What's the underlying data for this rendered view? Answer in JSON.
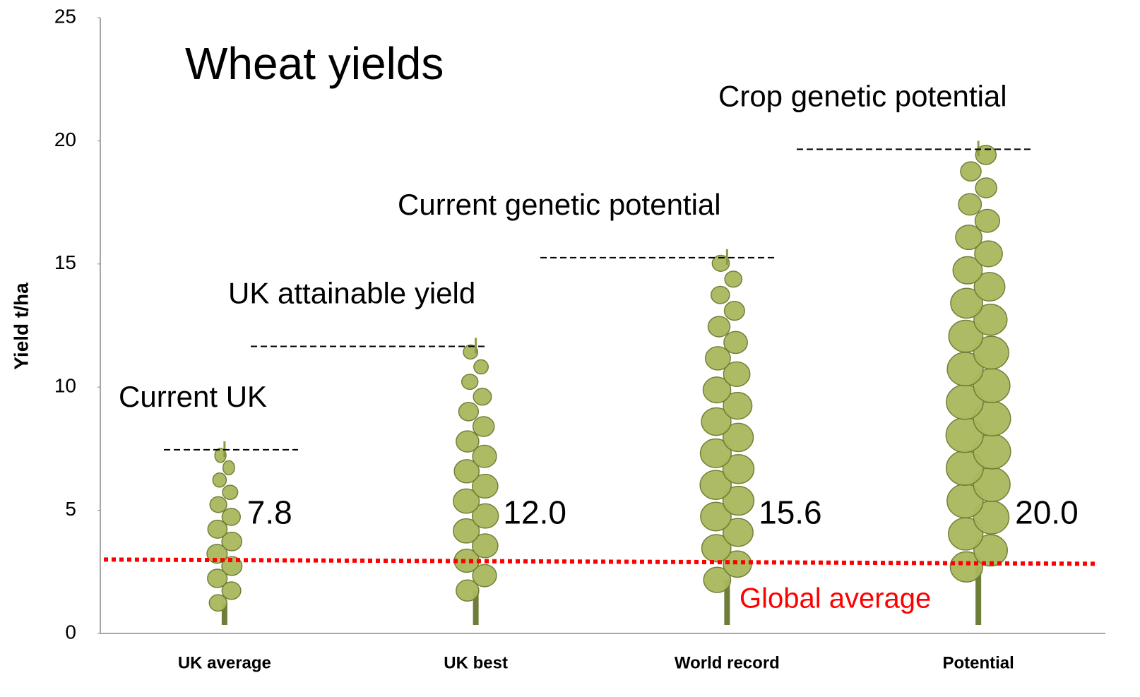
{
  "chart_data": {
    "type": "pictorial_bar",
    "title": "Wheat yields",
    "y_label": "Yield t/ha",
    "categories": [
      "UK average",
      "UK best",
      "World record",
      "Potential"
    ],
    "values": [
      7.8,
      12.0,
      15.6,
      20.0
    ],
    "value_labels": [
      "7.8",
      "12.0",
      "15.6",
      "20.0"
    ],
    "annotations": [
      "Current UK",
      "UK attainable yield",
      "Current genetic potential",
      "Crop genetic potential"
    ],
    "reference_line": {
      "value": 3,
      "label": "Global average",
      "color": "#ff0000"
    },
    "color": "#a9b95c",
    "ylim": [
      0,
      25
    ],
    "yticks": [
      0,
      5,
      10,
      15,
      20,
      25
    ]
  }
}
